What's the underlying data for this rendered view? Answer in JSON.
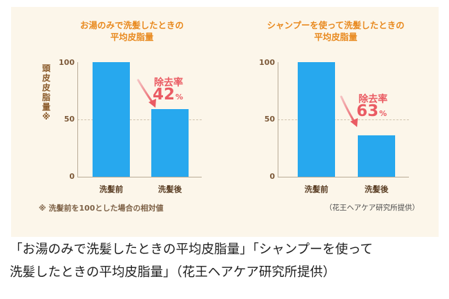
{
  "chart_data": [
    {
      "type": "bar",
      "title_lines": [
        "お湯のみで洗髪したときの",
        "平均皮脂量"
      ],
      "ylabel": "頭皮皮脂量※",
      "categories": [
        "洗髪前",
        "洗髪後"
      ],
      "values": [
        100,
        59
      ],
      "ylim": [
        0,
        100
      ],
      "yticks": [
        "0",
        "50",
        "100"
      ],
      "bar_color": "#27a8ee",
      "annotation": {
        "label": "除去率",
        "value": "42",
        "unit": "%"
      }
    },
    {
      "type": "bar",
      "title_lines": [
        "シャンプーを使って洗髪したときの",
        "平均皮脂量"
      ],
      "categories": [
        "洗髪前",
        "洗髪後"
      ],
      "values": [
        100,
        36
      ],
      "ylim": [
        0,
        100
      ],
      "yticks": [
        "0",
        "50",
        "100"
      ],
      "bar_color": "#27a8ee",
      "annotation": {
        "label": "除去率",
        "value": "63",
        "unit": "%"
      }
    }
  ],
  "footnote": "※ 洗髪前を100とした場合の相対値",
  "credit": "（花王ヘアケア研究所提供）",
  "caption_lines": [
    "「お湯のみで洗髪したときの平均皮脂量」「シャンプーを使って",
    "洗髪したときの平均皮脂量」（花王ヘアケア研究所提供）"
  ]
}
